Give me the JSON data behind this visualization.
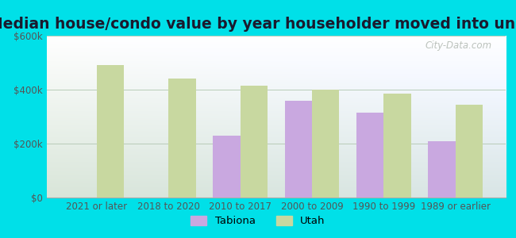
{
  "title": "Median house/condo value by year householder moved into unit",
  "categories": [
    "2021 or later",
    "2018 to 2020",
    "2010 to 2017",
    "2000 to 2009",
    "1990 to 1999",
    "1989 or earlier"
  ],
  "tabiona": [
    null,
    null,
    230000,
    360000,
    315000,
    210000
  ],
  "utah": [
    490000,
    440000,
    415000,
    400000,
    385000,
    345000
  ],
  "bar_color_tabiona": "#c9a8e0",
  "bar_color_utah": "#c8d8a0",
  "background_outer": "#00e0e8",
  "ylim": [
    0,
    600000
  ],
  "yticks": [
    0,
    200000,
    400000,
    600000
  ],
  "ytick_labels": [
    "$0",
    "$200k",
    "$400k",
    "$600k"
  ],
  "watermark": "City-Data.com",
  "legend_labels": [
    "Tabiona",
    "Utah"
  ],
  "bar_width": 0.38,
  "title_fontsize": 13.5,
  "tick_fontsize": 8.5
}
